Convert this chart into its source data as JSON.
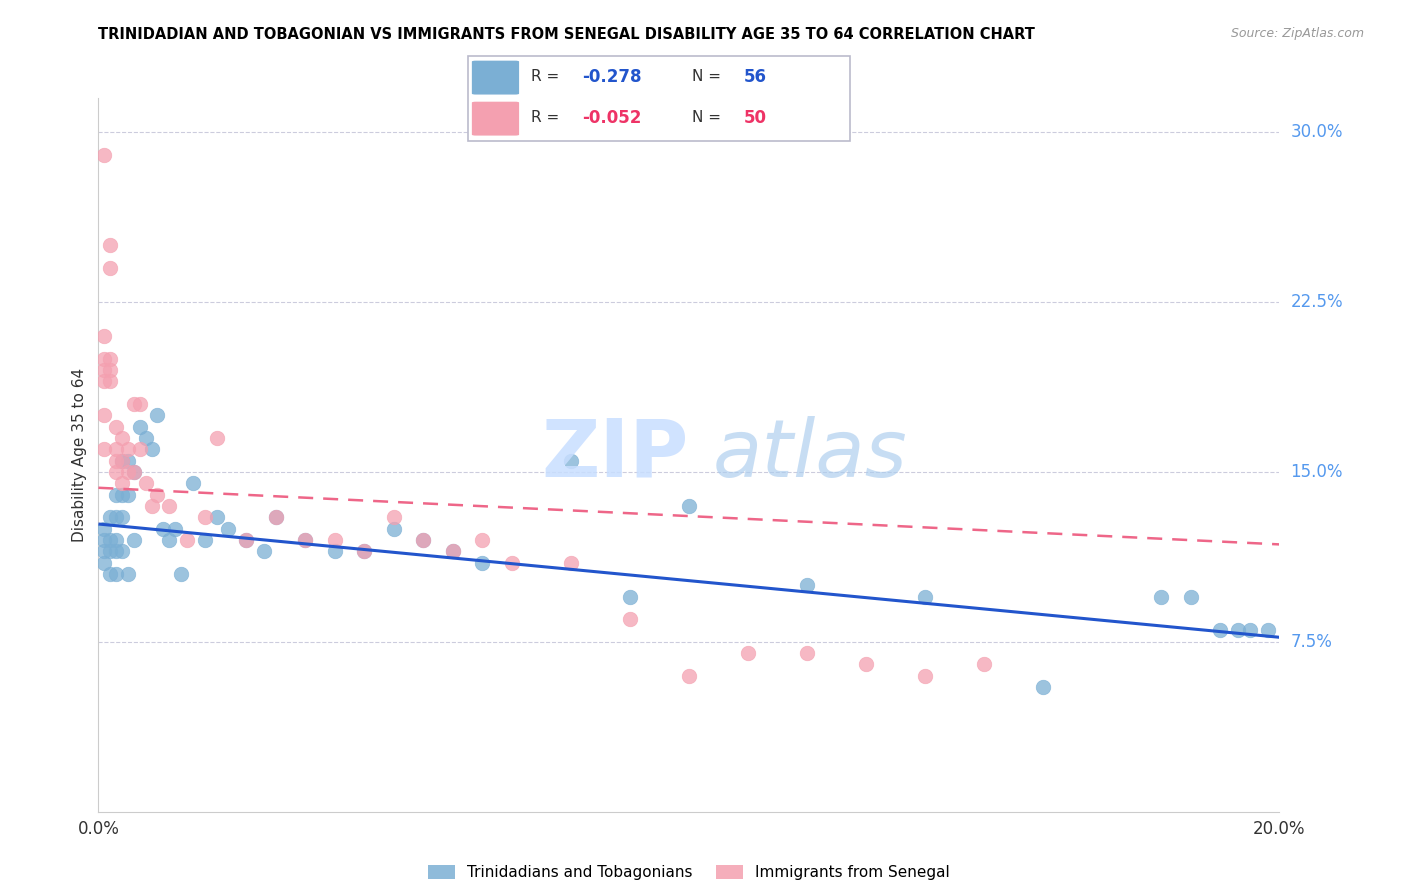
{
  "title": "TRINIDADIAN AND TOBAGONIAN VS IMMIGRANTS FROM SENEGAL DISABILITY AGE 35 TO 64 CORRELATION CHART",
  "source": "Source: ZipAtlas.com",
  "ylabel": "Disability Age 35 to 64",
  "xlim": [
    0.0,
    0.2
  ],
  "ylim": [
    0.0,
    0.315
  ],
  "xtick_positions": [
    0.0,
    0.05,
    0.1,
    0.15,
    0.2
  ],
  "xtick_labels": [
    "0.0%",
    "",
    "",
    "",
    "20.0%"
  ],
  "ytick_values_right": [
    0.075,
    0.15,
    0.225,
    0.3
  ],
  "ytick_labels_right": [
    "7.5%",
    "15.0%",
    "22.5%",
    "30.0%"
  ],
  "legend_blue_r": "-0.278",
  "legend_blue_n": "56",
  "legend_pink_r": "-0.052",
  "legend_pink_n": "50",
  "legend_label_blue": "Trinidadians and Tobagonians",
  "legend_label_pink": "Immigrants from Senegal",
  "blue_color": "#7BAFD4",
  "pink_color": "#F4A0B0",
  "trend_blue_color": "#2255CC",
  "trend_pink_color": "#EE6688",
  "blue_x": [
    0.001,
    0.001,
    0.001,
    0.001,
    0.002,
    0.002,
    0.002,
    0.002,
    0.003,
    0.003,
    0.003,
    0.003,
    0.003,
    0.004,
    0.004,
    0.004,
    0.004,
    0.005,
    0.005,
    0.005,
    0.006,
    0.006,
    0.007,
    0.008,
    0.009,
    0.01,
    0.011,
    0.012,
    0.013,
    0.014,
    0.016,
    0.018,
    0.02,
    0.022,
    0.025,
    0.028,
    0.03,
    0.035,
    0.04,
    0.045,
    0.05,
    0.055,
    0.06,
    0.065,
    0.08,
    0.09,
    0.1,
    0.12,
    0.14,
    0.16,
    0.18,
    0.185,
    0.19,
    0.193,
    0.195,
    0.198
  ],
  "blue_y": [
    0.125,
    0.12,
    0.115,
    0.11,
    0.13,
    0.12,
    0.115,
    0.105,
    0.14,
    0.13,
    0.12,
    0.115,
    0.105,
    0.155,
    0.14,
    0.13,
    0.115,
    0.155,
    0.14,
    0.105,
    0.15,
    0.12,
    0.17,
    0.165,
    0.16,
    0.175,
    0.125,
    0.12,
    0.125,
    0.105,
    0.145,
    0.12,
    0.13,
    0.125,
    0.12,
    0.115,
    0.13,
    0.12,
    0.115,
    0.115,
    0.125,
    0.12,
    0.115,
    0.11,
    0.155,
    0.095,
    0.135,
    0.1,
    0.095,
    0.055,
    0.095,
    0.095,
    0.08,
    0.08,
    0.08,
    0.08
  ],
  "pink_x": [
    0.001,
    0.001,
    0.001,
    0.001,
    0.001,
    0.001,
    0.001,
    0.002,
    0.002,
    0.002,
    0.002,
    0.002,
    0.003,
    0.003,
    0.003,
    0.003,
    0.004,
    0.004,
    0.004,
    0.005,
    0.005,
    0.006,
    0.006,
    0.007,
    0.007,
    0.008,
    0.009,
    0.01,
    0.012,
    0.015,
    0.018,
    0.02,
    0.025,
    0.03,
    0.035,
    0.04,
    0.045,
    0.05,
    0.055,
    0.06,
    0.065,
    0.07,
    0.08,
    0.09,
    0.1,
    0.11,
    0.12,
    0.13,
    0.14,
    0.15
  ],
  "pink_y": [
    0.29,
    0.21,
    0.2,
    0.195,
    0.19,
    0.175,
    0.16,
    0.25,
    0.24,
    0.2,
    0.195,
    0.19,
    0.17,
    0.16,
    0.155,
    0.15,
    0.165,
    0.155,
    0.145,
    0.16,
    0.15,
    0.18,
    0.15,
    0.18,
    0.16,
    0.145,
    0.135,
    0.14,
    0.135,
    0.12,
    0.13,
    0.165,
    0.12,
    0.13,
    0.12,
    0.12,
    0.115,
    0.13,
    0.12,
    0.115,
    0.12,
    0.11,
    0.11,
    0.085,
    0.06,
    0.07,
    0.07,
    0.065,
    0.06,
    0.065
  ],
  "blue_trend_x": [
    0.0,
    0.2
  ],
  "blue_trend_y": [
    0.127,
    0.077
  ],
  "pink_trend_x": [
    0.0,
    0.2
  ],
  "pink_trend_y": [
    0.143,
    0.118
  ]
}
